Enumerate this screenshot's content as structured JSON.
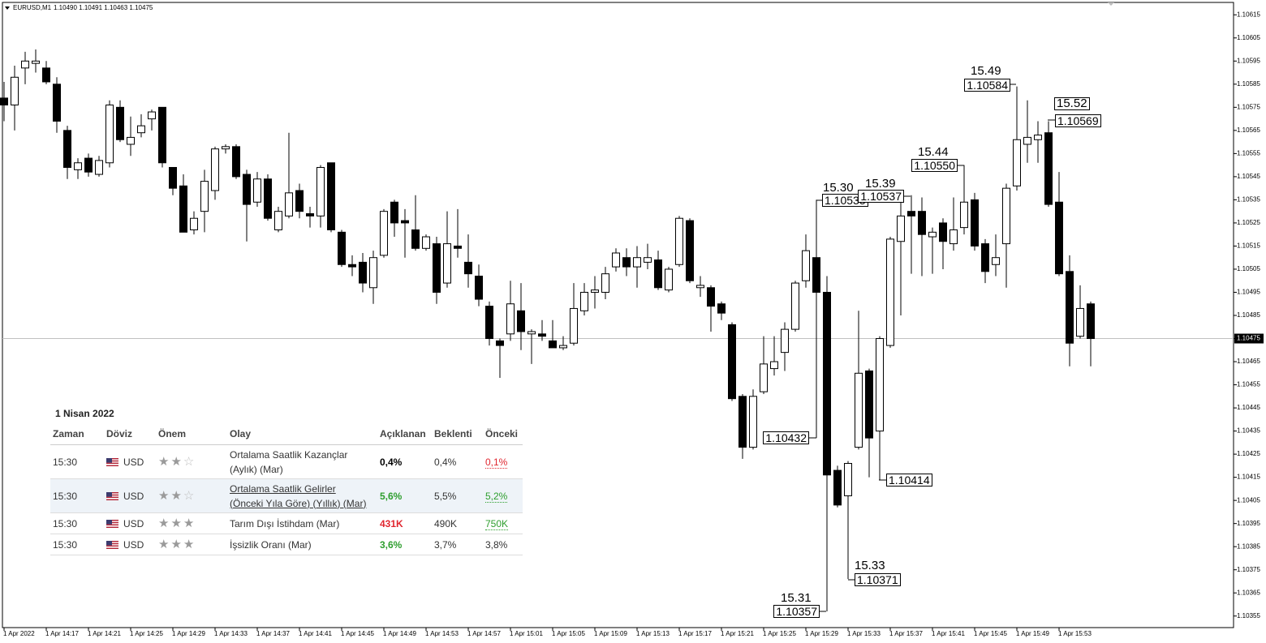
{
  "chart_data": {
    "type": "candlestick",
    "title": "EURUSD,M1",
    "quote": "1.10490 1.10491 1.10463 1.10475",
    "categories": [
      "1 Apr 2022",
      null,
      null,
      null,
      "1 Apr 14:17",
      null,
      null,
      null,
      "1 Apr 14:21",
      null,
      null,
      null,
      "1 Apr 14:25",
      null,
      null,
      null,
      "1 Apr 14:29",
      null,
      null,
      null,
      "1 Apr 14:33",
      null,
      null,
      null,
      "1 Apr 14:37",
      null,
      null,
      null,
      "1 Apr 14:41",
      null,
      null,
      null,
      "1 Apr 14:45",
      null,
      null,
      null,
      "1 Apr 14:49",
      null,
      null,
      null,
      "1 Apr 14:53",
      null,
      null,
      null,
      "1 Apr 14:57",
      null,
      null,
      null,
      "1 Apr 15:01",
      null,
      null,
      null,
      "1 Apr 15:05",
      null,
      null,
      null,
      "1 Apr 15:09",
      null,
      null,
      null,
      "1 Apr 15:13",
      null,
      null,
      null,
      "1 Apr 15:17",
      null,
      null,
      null,
      "1 Apr 15:21",
      null,
      null,
      null,
      "1 Apr 15:25",
      null,
      null,
      null,
      "1 Apr 15:29",
      null,
      null,
      null,
      "1 Apr 15:33",
      null,
      null,
      null,
      "1 Apr 15:37",
      null,
      null,
      null,
      "1 Apr 15:41",
      null,
      null,
      null,
      "1 Apr 15:45",
      null,
      null,
      null,
      "1 Apr 15:49",
      null,
      null,
      null,
      "1 Apr 15:53",
      null,
      null,
      null
    ],
    "open": [
      1.10579,
      1.10576,
      1.10592,
      1.10594,
      1.10592,
      1.10585,
      1.10565,
      1.10548,
      1.10553,
      1.10546,
      1.10551,
      1.10575,
      1.10559,
      1.10564,
      1.1057,
      1.10575,
      1.10549,
      1.10541,
      1.10522,
      1.1053,
      1.10539,
      1.10557,
      1.10558,
      1.10546,
      1.10534,
      1.10544,
      1.10522,
      1.10528,
      1.10539,
      1.10529,
      1.10528,
      1.10551,
      1.10521,
      1.10507,
      1.10508,
      1.10497,
      1.10511,
      1.10534,
      1.10526,
      1.10522,
      1.10514,
      1.10516,
      1.10499,
      1.10515,
      1.10508,
      1.10502,
      1.10489,
      1.10474,
      1.10477,
      1.10487,
      1.10477,
      1.10477,
      1.10474,
      1.10471,
      1.10473,
      1.10487,
      1.10495,
      1.10495,
      1.10506,
      1.1051,
      1.10506,
      1.10508,
      1.10509,
      1.10496,
      1.10507,
      1.10526,
      1.10497,
      1.10497,
      1.1049,
      1.10481,
      1.1045,
      1.10428,
      1.10452,
      1.10462,
      1.10469,
      1.10479,
      1.105,
      1.1051,
      1.10495,
      1.10418,
      1.10407,
      1.10428,
      1.10461,
      1.10435,
      1.10472,
      1.10517,
      1.1053,
      1.1053,
      1.10519,
      1.10525,
      1.10516,
      1.10523,
      1.10535,
      1.10516,
      1.10507,
      1.10516,
      1.10541,
      1.10559,
      1.10561,
      1.10564,
      1.10534,
      1.10504,
      1.10476,
      1.1049
    ],
    "high": [
      1.10586,
      1.10593,
      1.10599,
      1.106,
      1.10595,
      1.10588,
      1.10567,
      1.10553,
      1.10555,
      1.10554,
      1.10578,
      1.10578,
      1.10571,
      1.10572,
      1.10574,
      1.10575,
      1.10549,
      1.10546,
      1.1053,
      1.10548,
      1.10558,
      1.10559,
      1.10559,
      1.10548,
      1.10547,
      1.10546,
      1.10532,
      1.10564,
      1.10542,
      1.10532,
      1.1055,
      1.10551,
      1.10522,
      1.10511,
      1.10512,
      1.10513,
      1.10531,
      1.10535,
      1.10531,
      1.10537,
      1.1052,
      1.10519,
      1.1053,
      1.10531,
      1.1052,
      1.10507,
      1.10491,
      1.10475,
      1.105,
      1.10499,
      1.10479,
      1.10483,
      1.10483,
      1.10476,
      1.10499,
      1.10499,
      1.10502,
      1.10506,
      1.10514,
      1.10514,
      1.10515,
      1.10516,
      1.10513,
      1.10506,
      1.10528,
      1.10527,
      1.10502,
      1.10498,
      1.10491,
      1.10482,
      1.10451,
      1.10453,
      1.10476,
      1.10476,
      1.10482,
      1.105,
      1.1052,
      1.10535,
      1.10502,
      1.1042,
      1.10422,
      1.10487,
      1.10462,
      1.10476,
      1.10519,
      1.10534,
      1.10537,
      1.10536,
      1.10523,
      1.10527,
      1.10536,
      1.1055,
      1.10538,
      1.10518,
      1.1052,
      1.10542,
      1.10584,
      1.10578,
      1.10569,
      1.10569,
      1.10547,
      1.10511,
      1.10498,
      1.10491
    ],
    "low": [
      1.10569,
      1.10565,
      1.10585,
      1.1059,
      1.10585,
      1.10564,
      1.10544,
      1.10544,
      1.10545,
      1.10545,
      1.10549,
      1.1056,
      1.10554,
      1.10562,
      1.10565,
      1.10549,
      1.10537,
      1.10521,
      1.1052,
      1.10521,
      1.10535,
      1.10555,
      1.10544,
      1.10517,
      1.10532,
      1.10526,
      1.10521,
      1.10527,
      1.10527,
      1.10523,
      1.10523,
      1.10521,
      1.10506,
      1.10502,
      1.10495,
      1.1049,
      1.1051,
      1.10519,
      1.1051,
      1.10513,
      1.10513,
      1.1049,
      1.10497,
      1.1051,
      1.10497,
      1.10489,
      1.10472,
      1.10458,
      1.10474,
      1.1047,
      1.10464,
      1.10474,
      1.10471,
      1.1047,
      1.10472,
      1.10485,
      1.10488,
      1.10492,
      1.10504,
      1.10502,
      1.10497,
      1.10505,
      1.10496,
      1.10495,
      1.10506,
      1.10499,
      1.10493,
      1.10478,
      1.10483,
      1.10448,
      1.10423,
      1.10427,
      1.10451,
      1.10459,
      1.10461,
      1.10478,
      1.10497,
      1.10432,
      1.10357,
      1.10402,
      1.10371,
      1.10427,
      1.10415,
      1.10414,
      1.10471,
      1.10485,
      1.10503,
      1.10502,
      1.10503,
      1.10505,
      1.10513,
      1.1052,
      1.10513,
      1.10499,
      1.10502,
      1.10497,
      1.10539,
      1.10551,
      1.10551,
      1.10532,
      1.10502,
      1.10463,
      1.10475,
      1.10463
    ],
    "close": [
      1.10576,
      1.10588,
      1.10595,
      1.10595,
      1.10586,
      1.10569,
      1.10549,
      1.10551,
      1.10547,
      1.10552,
      1.10576,
      1.10561,
      1.10562,
      1.10567,
      1.10573,
      1.10551,
      1.1054,
      1.10521,
      1.10527,
      1.10543,
      1.10557,
      1.10558,
      1.10545,
      1.10533,
      1.10544,
      1.10527,
      1.1053,
      1.10538,
      1.1053,
      1.10528,
      1.10549,
      1.10522,
      1.10507,
      1.10506,
      1.10499,
      1.1051,
      1.1053,
      1.10525,
      1.10525,
      1.10514,
      1.10519,
      1.10495,
      1.10516,
      1.10514,
      1.10503,
      1.10492,
      1.10475,
      1.10472,
      1.1049,
      1.10478,
      1.10478,
      1.10476,
      1.10471,
      1.10472,
      1.10488,
      1.10495,
      1.10496,
      1.10503,
      1.10512,
      1.10506,
      1.1051,
      1.1051,
      1.10497,
      1.10505,
      1.10527,
      1.105,
      1.10498,
      1.10489,
      1.10486,
      1.10449,
      1.10428,
      1.1045,
      1.10464,
      1.10465,
      1.10479,
      1.10499,
      1.10513,
      1.10495,
      1.10416,
      1.10403,
      1.10421,
      1.1046,
      1.10432,
      1.10475,
      1.10518,
      1.10528,
      1.10528,
      1.1052,
      1.10521,
      1.10517,
      1.10522,
      1.10534,
      1.10515,
      1.10504,
      1.1051,
      1.1054,
      1.10561,
      1.10562,
      1.10563,
      1.10533,
      1.10503,
      1.10473,
      1.10488,
      1.10475
    ],
    "up_color": "#ffffff",
    "down_color": "#000000",
    "ylim": [
      1.1035,
      1.1062
    ],
    "yticks": [
      1.10615,
      1.10605,
      1.10595,
      1.10585,
      1.10575,
      1.10565,
      1.10555,
      1.10545,
      1.10535,
      1.10525,
      1.10515,
      1.10505,
      1.10495,
      1.10485,
      1.10475,
      1.10465,
      1.10455,
      1.10445,
      1.10435,
      1.10425,
      1.10415,
      1.10405,
      1.10395,
      1.10385,
      1.10375,
      1.10365,
      1.10355
    ],
    "current_price": 1.10475,
    "grid": false,
    "annotations": [
      {
        "time": "15.30",
        "price": "1.10535"
      },
      {
        "price": "1.10432"
      },
      {
        "time": "15.31",
        "price": "1.10357"
      },
      {
        "time": "15.33",
        "price": "1.10371"
      },
      {
        "price": "1.10414"
      },
      {
        "time": "15.39",
        "price": "1.10537"
      },
      {
        "time": "15.44",
        "price": "1.10550"
      },
      {
        "time": "15.49",
        "price": "1.10584"
      },
      {
        "time": "15.52",
        "price": "1.10569"
      }
    ]
  },
  "calendar": {
    "date": "1 Nisan 2022",
    "columns": [
      "Zaman",
      "Döviz",
      "Önem",
      "Olay",
      "Açıklanan",
      "Beklenti",
      "Önceki"
    ],
    "rows": [
      {
        "time": "15:30",
        "currency": "USD",
        "importance": 2,
        "event": [
          "Ortalama Saatlik Kazançlar",
          "(Aylık) (Mar)"
        ],
        "actual": "0,4%",
        "forecast": "0,4%",
        "previous": "0,1%",
        "actual_color": "#000000",
        "previous_color": "#e0262f"
      },
      {
        "time": "15:30",
        "currency": "USD",
        "importance": 2,
        "event": [
          "Ortalama Saatlik Gelirler",
          "(Önceki Yıla Göre) (Yıllık) (Mar)"
        ],
        "actual": "5,6%",
        "forecast": "5,5%",
        "previous": "5,2%",
        "actual_color": "#2e9e2e",
        "previous_color": "#2e9e2e",
        "highlight": true,
        "link": true
      },
      {
        "time": "15:30",
        "currency": "USD",
        "importance": 3,
        "event": [
          "Tarım Dışı İstihdam (Mar)"
        ],
        "actual": "431K",
        "forecast": "490K",
        "previous": "750K",
        "actual_color": "#e0262f",
        "previous_color": "#2e9e2e"
      },
      {
        "time": "15:30",
        "currency": "USD",
        "importance": 3,
        "event": [
          "İşsizlik Oranı (Mar)"
        ],
        "actual": "3,6%",
        "forecast": "3,7%",
        "previous": "3,8%",
        "actual_color": "#2e9e2e"
      }
    ]
  }
}
